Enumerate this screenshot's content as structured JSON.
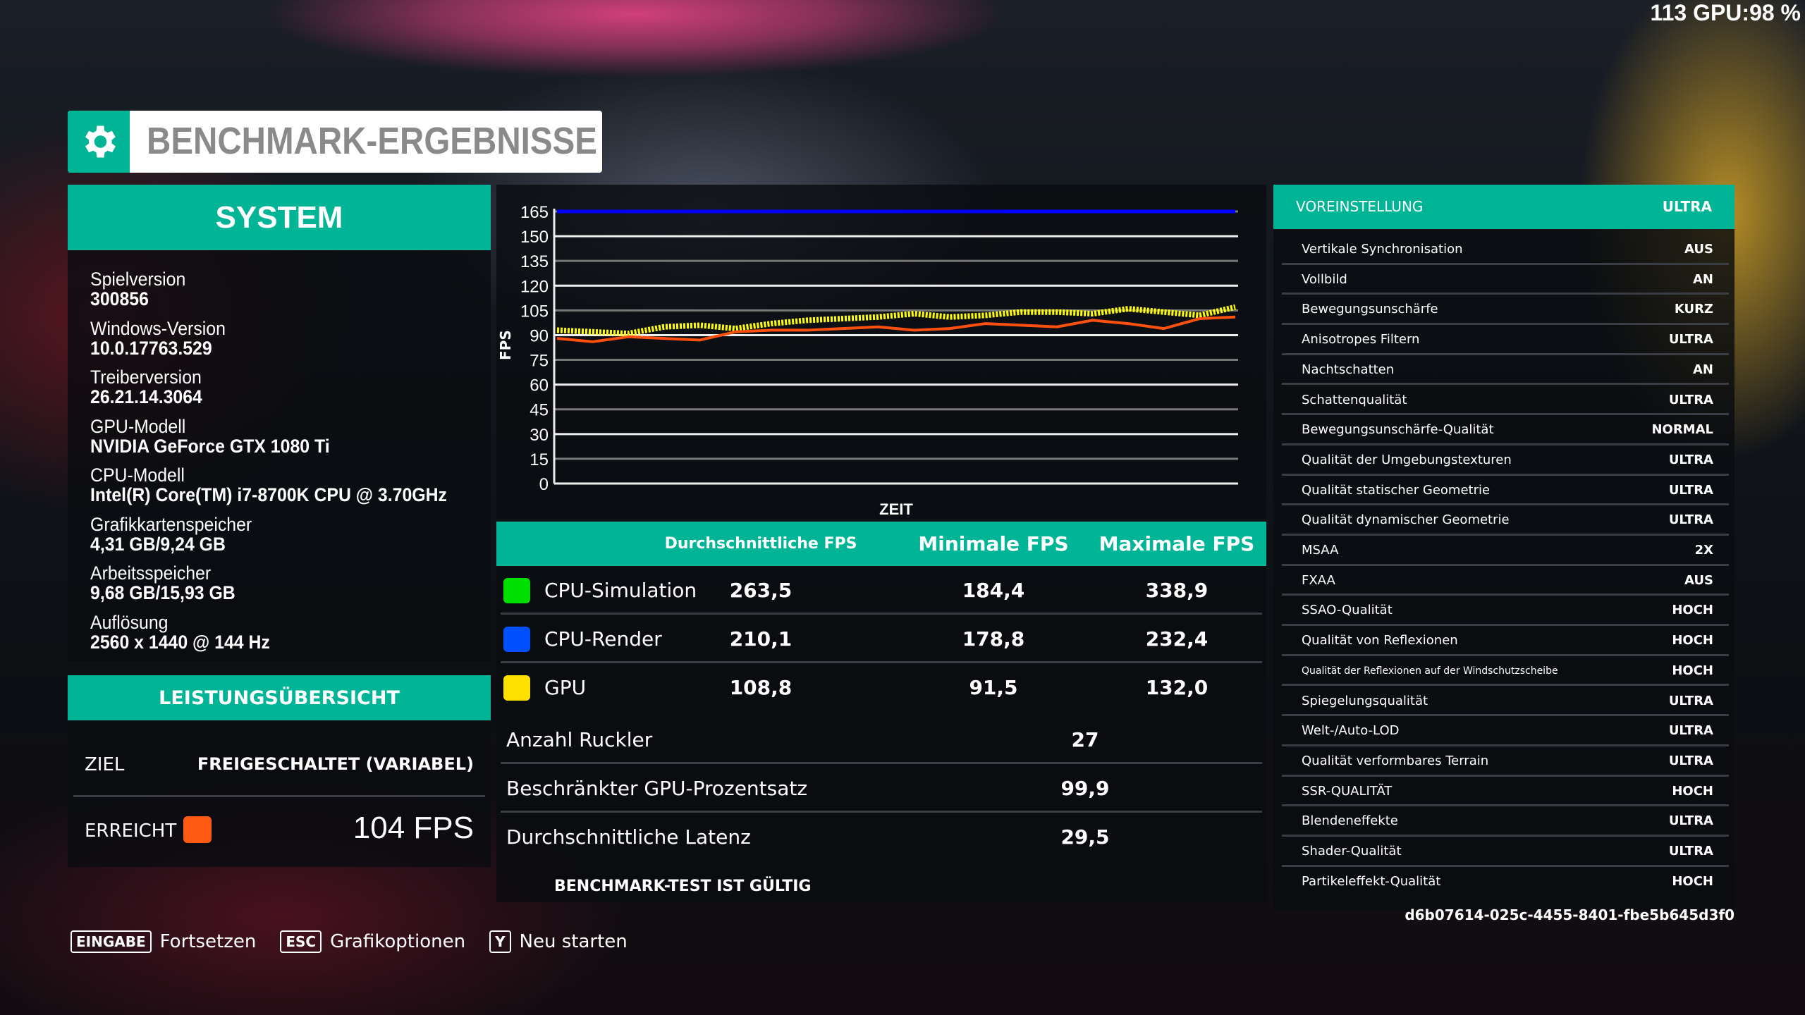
{
  "overlay": {
    "fps_gpu": "113 GPU:98 %"
  },
  "title": "BENCHMARK-ERGEBNISSE",
  "system": {
    "header": "SYSTEM",
    "items": [
      {
        "label": "Spielversion",
        "value": "300856"
      },
      {
        "label": "Windows-Version",
        "value": "10.0.17763.529"
      },
      {
        "label": "Treiberversion",
        "value": "26.21.14.3064"
      },
      {
        "label": "GPU-Modell",
        "value": "NVIDIA GeForce GTX 1080 Ti"
      },
      {
        "label": "CPU-Modell",
        "value": "Intel(R) Core(TM) i7-8700K CPU @ 3.70GHz"
      },
      {
        "label": "Grafikkartenspeicher",
        "value": "4,31 GB/9,24 GB"
      },
      {
        "label": "Arbeitsspeicher",
        "value": "9,68 GB/15,93 GB"
      },
      {
        "label": "Auflösung",
        "value": "2560 x 1440 @ 144 Hz"
      }
    ]
  },
  "performance": {
    "header": "LEISTUNGSÜBERSICHT",
    "target_label": "ZIEL",
    "target_value": "FREIGESCHALTET (VARIABEL)",
    "achieved_label": "ERREICHT",
    "achieved_value": "104 FPS",
    "achieved_color": "#ff5a14"
  },
  "chart_data": {
    "type": "line",
    "xlabel": "ZEIT",
    "ylabel": "FPS",
    "ylim": [
      0,
      165
    ],
    "yticks": [
      0,
      15,
      30,
      45,
      60,
      75,
      90,
      105,
      120,
      135,
      150,
      165
    ],
    "grid": true,
    "series": [
      {
        "color": "#0000ff",
        "values": [
          165,
          165,
          165,
          165,
          165,
          165,
          165,
          165,
          165,
          165,
          165,
          165,
          165,
          165,
          165,
          165,
          165,
          165,
          165,
          165
        ]
      },
      {
        "color": "#ffff00",
        "values": [
          93,
          92,
          91,
          95,
          96,
          94,
          97,
          99,
          100,
          101,
          103,
          101,
          102,
          104,
          104,
          103,
          106,
          104,
          102,
          107
        ]
      },
      {
        "color": "#ff5010",
        "values": [
          88,
          86,
          89,
          88,
          87,
          92,
          93,
          93,
          94,
          95,
          93,
          94,
          97,
          96,
          95,
          99,
          97,
          94,
          100,
          101
        ]
      }
    ]
  },
  "table": {
    "headers": [
      "Durchschnittliche FPS",
      "Minimale FPS",
      "Maximale FPS"
    ],
    "rows": [
      {
        "label": "CPU-Simulation",
        "color": "#00e000",
        "avg": "263,5",
        "min": "184,4",
        "max": "338,9"
      },
      {
        "label": "CPU-Render",
        "color": "#0050ff",
        "avg": "210,1",
        "min": "178,8",
        "max": "232,4"
      },
      {
        "label": "GPU",
        "color": "#ffe000",
        "avg": "108,8",
        "min": "91,5",
        "max": "132,0"
      }
    ],
    "stats": [
      {
        "label": "Anzahl Ruckler",
        "value": "27"
      },
      {
        "label": "Beschränkter GPU-Prozentsatz",
        "value": "99,9"
      },
      {
        "label": "Durchschnittliche Latenz",
        "value": "29,5"
      }
    ],
    "valid": "BENCHMARK-TEST IST GÜLTIG"
  },
  "settings": {
    "header_label": "VOREINSTELLUNG",
    "header_value": "ULTRA",
    "items": [
      {
        "label": "Vertikale Synchronisation",
        "value": "AUS"
      },
      {
        "label": "Vollbild",
        "value": "AN"
      },
      {
        "label": "Bewegungsunschärfe",
        "value": "KURZ"
      },
      {
        "label": "Anisotropes Filtern",
        "value": "ULTRA"
      },
      {
        "label": "Nachtschatten",
        "value": "AN"
      },
      {
        "label": "Schattenqualität",
        "value": "ULTRA"
      },
      {
        "label": "Bewegungsunschärfe-Qualität",
        "value": "NORMAL"
      },
      {
        "label": "Qualität der Umgebungstexturen",
        "value": "ULTRA"
      },
      {
        "label": "Qualität statischer Geometrie",
        "value": "ULTRA"
      },
      {
        "label": "Qualität dynamischer Geometrie",
        "value": "ULTRA"
      },
      {
        "label": "MSAA",
        "value": "2X"
      },
      {
        "label": "FXAA",
        "value": "AUS"
      },
      {
        "label": "SSAO-Qualität",
        "value": "HOCH"
      },
      {
        "label": "Qualität von Reflexionen",
        "value": "HOCH"
      },
      {
        "label": "Qualität der Reflexionen auf der Windschutzscheibe",
        "value": "HOCH"
      },
      {
        "label": "Spiegelungsqualität",
        "value": "ULTRA"
      },
      {
        "label": "Welt-/Auto-LOD",
        "value": "ULTRA"
      },
      {
        "label": "Qualität verformbares Terrain",
        "value": "ULTRA"
      },
      {
        "label": "SSR-QUALITÄT",
        "value": "HOCH"
      },
      {
        "label": "Blendeneffekte",
        "value": "ULTRA"
      },
      {
        "label": "Shader-Qualität",
        "value": "ULTRA"
      },
      {
        "label": "Partikeleffekt-Qualität",
        "value": "HOCH"
      }
    ],
    "hash": "d6b07614-025c-4455-8401-fbe5b645d3f0"
  },
  "footer": [
    {
      "key": "EINGABE",
      "label": "Fortsetzen"
    },
    {
      "key": "ESC",
      "label": "Grafikoptionen"
    },
    {
      "key": "Y",
      "label": "Neu starten"
    }
  ]
}
